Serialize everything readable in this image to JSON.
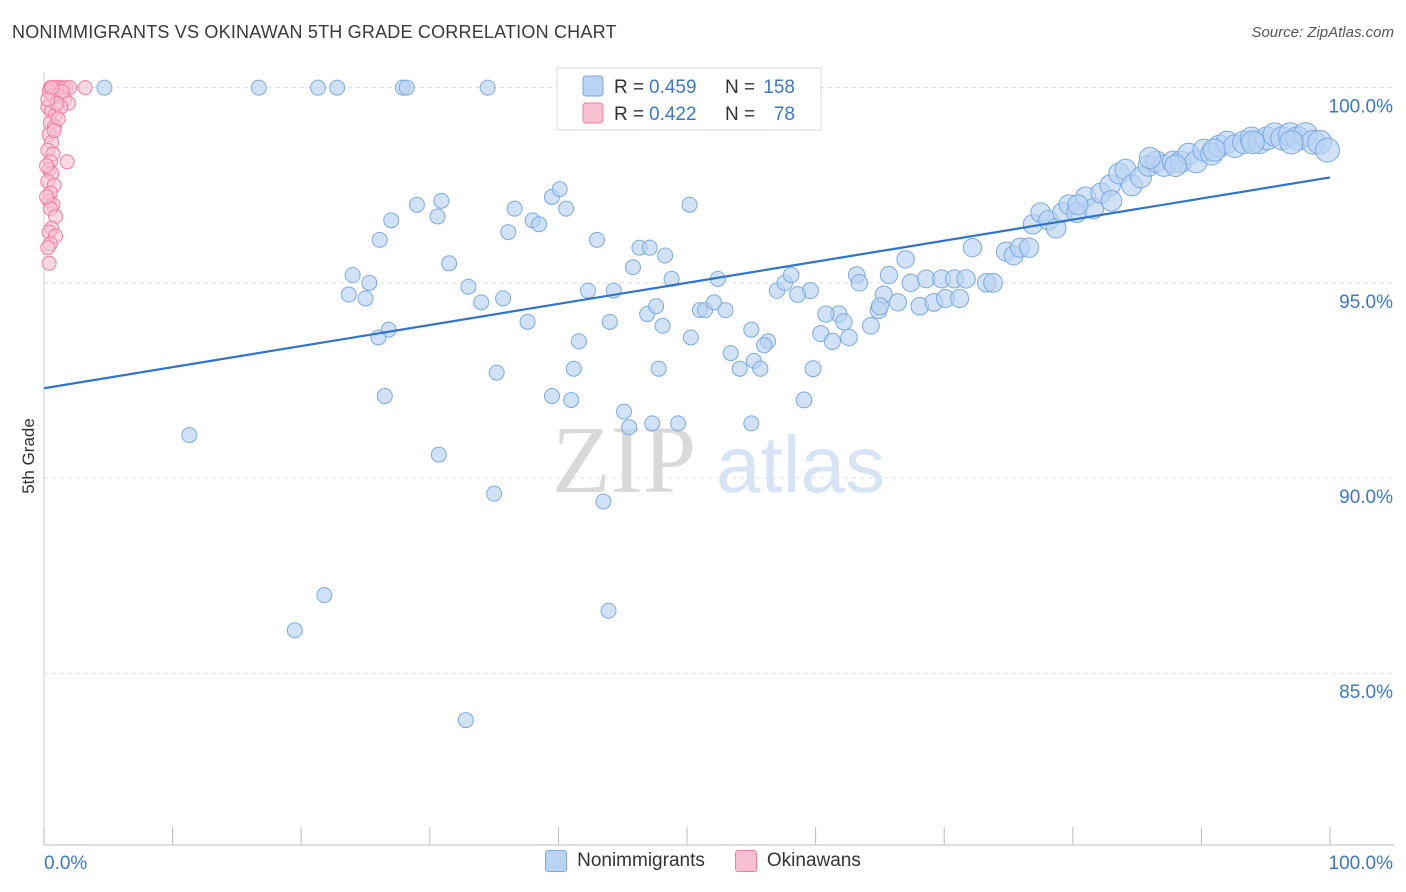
{
  "title": "NONIMMIGRANTS VS OKINAWAN 5TH GRADE CORRELATION CHART",
  "source": "Source: ZipAtlas.com",
  "watermark": {
    "zip": "ZIP",
    "atlas": "atlas"
  },
  "colors": {
    "blue_fill": "#b9d3f3",
    "blue_stroke": "#7aaae0",
    "blue_line": "#2f74cc",
    "pink_fill": "#f8bfd0",
    "pink_stroke": "#ee7fa0",
    "value_text": "#3b78c9"
  },
  "legend_top": [
    {
      "r_label": "R =",
      "r_value": "0.459",
      "n_label": "N =",
      "n_value": "158"
    },
    {
      "r_label": "R =",
      "r_value": "0.422",
      "n_label": "N =",
      "n_value": "78"
    }
  ],
  "legend_bottom": [
    {
      "name": "Nonimmigrants"
    },
    {
      "name": "Okinawans"
    }
  ],
  "chart_data": {
    "type": "scatter",
    "ylabel": "5th Grade",
    "xlabel": "",
    "x_tick_labels": [
      "0.0%",
      "100.0%"
    ],
    "y_tick_labels": [
      "100.0%",
      "95.0%",
      "90.0%",
      "85.0%"
    ],
    "y_ticks": [
      100,
      95,
      90,
      85
    ],
    "xlim": [
      0,
      100
    ],
    "ylim": [
      80.6,
      100.4
    ],
    "grid": "horizontal-dashed",
    "legend_placement": "top-center",
    "series": [
      {
        "name": "Nonimmigrants",
        "trend": [
          [
            0,
            92.3
          ],
          [
            100,
            97.7
          ]
        ],
        "points": [
          [
            4.7,
            100
          ],
          [
            16.7,
            100
          ],
          [
            21.3,
            100
          ],
          [
            22.8,
            100
          ],
          [
            27.9,
            100
          ],
          [
            28.2,
            100
          ],
          [
            34.5,
            100
          ],
          [
            11.3,
            91.1
          ],
          [
            19.5,
            86.1
          ],
          [
            21.8,
            87.0
          ],
          [
            26.5,
            92.1
          ],
          [
            30.7,
            90.6
          ],
          [
            32.8,
            83.8
          ],
          [
            35.0,
            89.6
          ],
          [
            43.5,
            89.4
          ],
          [
            43.9,
            86.6
          ],
          [
            47.3,
            91.4
          ],
          [
            49.3,
            91.4
          ],
          [
            55.0,
            91.4
          ],
          [
            29.0,
            97.0
          ],
          [
            30.9,
            97.1
          ],
          [
            30.6,
            96.7
          ],
          [
            27.0,
            96.6
          ],
          [
            26.1,
            96.1
          ],
          [
            31.5,
            95.5
          ],
          [
            24.0,
            95.2
          ],
          [
            25.3,
            95.0
          ],
          [
            23.7,
            94.7
          ],
          [
            25.0,
            94.6
          ],
          [
            26.8,
            93.8
          ],
          [
            26.0,
            93.6
          ],
          [
            33.0,
            94.9
          ],
          [
            34.0,
            94.5
          ],
          [
            35.7,
            94.6
          ],
          [
            35.2,
            92.7
          ],
          [
            37.6,
            94.0
          ],
          [
            36.6,
            96.9
          ],
          [
            36.1,
            96.3
          ],
          [
            38.0,
            96.6
          ],
          [
            38.5,
            96.5
          ],
          [
            39.5,
            97.2
          ],
          [
            40.1,
            97.4
          ],
          [
            40.6,
            96.9
          ],
          [
            39.5,
            92.1
          ],
          [
            41.0,
            92.0
          ],
          [
            41.2,
            92.8
          ],
          [
            41.6,
            93.5
          ],
          [
            42.3,
            94.8
          ],
          [
            43.0,
            96.1
          ],
          [
            44.3,
            94.8
          ],
          [
            45.1,
            91.7
          ],
          [
            45.5,
            91.3
          ],
          [
            45.8,
            95.4
          ],
          [
            46.3,
            95.9
          ],
          [
            47.1,
            95.9
          ],
          [
            46.9,
            94.2
          ],
          [
            47.6,
            94.4
          ],
          [
            48.3,
            95.7
          ],
          [
            48.8,
            95.1
          ],
          [
            48.1,
            93.9
          ],
          [
            50.2,
            97.0
          ],
          [
            50.3,
            93.6
          ],
          [
            51.0,
            94.3
          ],
          [
            51.4,
            94.3
          ],
          [
            52.1,
            94.5
          ],
          [
            52.4,
            95.1
          ],
          [
            53.4,
            93.2
          ],
          [
            54.1,
            92.8
          ],
          [
            55.2,
            93.0
          ],
          [
            55.7,
            92.8
          ],
          [
            55.0,
            93.8
          ],
          [
            56.3,
            93.5
          ],
          [
            57.0,
            94.8
          ],
          [
            57.6,
            95.0
          ],
          [
            58.1,
            95.2
          ],
          [
            59.1,
            92.0
          ],
          [
            59.6,
            94.8
          ],
          [
            59.8,
            92.8
          ],
          [
            60.4,
            93.7
          ],
          [
            61.3,
            93.5
          ],
          [
            61.8,
            94.2
          ],
          [
            62.2,
            94.0
          ],
          [
            62.6,
            93.6
          ],
          [
            63.2,
            95.2
          ],
          [
            63.4,
            95.0
          ],
          [
            64.3,
            93.9
          ],
          [
            64.9,
            94.3
          ],
          [
            65.3,
            94.7
          ],
          [
            65.7,
            95.2
          ],
          [
            66.4,
            94.5
          ],
          [
            67.0,
            95.6
          ],
          [
            67.4,
            95.0
          ],
          [
            68.1,
            94.4
          ],
          [
            68.6,
            95.1
          ],
          [
            69.2,
            94.5
          ],
          [
            69.8,
            95.1
          ],
          [
            70.1,
            94.6
          ],
          [
            70.8,
            95.1
          ],
          [
            71.2,
            94.6
          ],
          [
            71.7,
            95.1
          ],
          [
            72.2,
            95.9
          ],
          [
            73.3,
            95.0
          ],
          [
            73.8,
            95.0
          ],
          [
            74.8,
            95.8
          ],
          [
            75.4,
            95.7
          ],
          [
            75.9,
            95.9
          ],
          [
            76.6,
            95.9
          ],
          [
            76.9,
            96.5
          ],
          [
            77.5,
            96.8
          ],
          [
            78.1,
            96.6
          ],
          [
            78.7,
            96.4
          ],
          [
            79.2,
            96.8
          ],
          [
            79.7,
            97.0
          ],
          [
            80.3,
            96.8
          ],
          [
            81.0,
            97.2
          ],
          [
            81.6,
            96.9
          ],
          [
            82.2,
            97.3
          ],
          [
            82.9,
            97.5
          ],
          [
            83.6,
            97.8
          ],
          [
            84.1,
            97.9
          ],
          [
            84.6,
            97.5
          ],
          [
            85.3,
            97.7
          ],
          [
            85.9,
            98.0
          ],
          [
            86.5,
            98.1
          ],
          [
            87.1,
            98.0
          ],
          [
            87.8,
            98.1
          ],
          [
            88.4,
            98.1
          ],
          [
            89.0,
            98.3
          ],
          [
            89.6,
            98.1
          ],
          [
            90.2,
            98.4
          ],
          [
            90.8,
            98.3
          ],
          [
            91.4,
            98.5
          ],
          [
            92.0,
            98.6
          ],
          [
            92.6,
            98.5
          ],
          [
            93.3,
            98.6
          ],
          [
            93.9,
            98.7
          ],
          [
            94.5,
            98.6
          ],
          [
            95.1,
            98.7
          ],
          [
            95.7,
            98.8
          ],
          [
            96.3,
            98.7
          ],
          [
            96.9,
            98.8
          ],
          [
            97.5,
            98.7
          ],
          [
            98.1,
            98.8
          ],
          [
            98.7,
            98.6
          ],
          [
            99.2,
            98.6
          ],
          [
            99.8,
            98.4
          ],
          [
            80.4,
            97.0
          ],
          [
            83.0,
            97.1
          ],
          [
            86.0,
            98.2
          ],
          [
            88.0,
            98.0
          ],
          [
            91.0,
            98.4
          ],
          [
            94.0,
            98.6
          ],
          [
            97.0,
            98.6
          ],
          [
            65.0,
            94.4
          ],
          [
            58.6,
            94.7
          ],
          [
            47.8,
            92.8
          ],
          [
            53.0,
            94.3
          ],
          [
            56.0,
            93.4
          ],
          [
            44.0,
            94.0
          ],
          [
            60.8,
            94.2
          ]
        ]
      },
      {
        "name": "Okinawans",
        "points": [
          [
            0.5,
            100
          ],
          [
            0.8,
            100
          ],
          [
            1.0,
            100
          ],
          [
            1.2,
            100
          ],
          [
            1.5,
            100
          ],
          [
            1.7,
            100
          ],
          [
            2.0,
            100
          ],
          [
            3.2,
            100
          ],
          [
            0.4,
            99.9
          ],
          [
            0.7,
            99.8
          ],
          [
            1.1,
            99.8
          ],
          [
            1.6,
            99.7
          ],
          [
            1.9,
            99.6
          ],
          [
            0.3,
            99.5
          ],
          [
            0.6,
            99.4
          ],
          [
            0.9,
            99.3
          ],
          [
            1.3,
            99.5
          ],
          [
            0.5,
            99.1
          ],
          [
            0.8,
            99.0
          ],
          [
            0.4,
            98.8
          ],
          [
            0.6,
            98.6
          ],
          [
            0.3,
            98.4
          ],
          [
            0.7,
            98.3
          ],
          [
            0.5,
            98.1
          ],
          [
            1.8,
            98.1
          ],
          [
            0.4,
            97.9
          ],
          [
            0.6,
            97.8
          ],
          [
            0.3,
            97.6
          ],
          [
            0.8,
            97.5
          ],
          [
            0.5,
            97.3
          ],
          [
            0.4,
            97.1
          ],
          [
            0.7,
            97.0
          ],
          [
            0.5,
            96.9
          ],
          [
            0.9,
            96.7
          ],
          [
            0.6,
            96.4
          ],
          [
            0.4,
            96.3
          ],
          [
            0.9,
            96.2
          ],
          [
            0.5,
            96.0
          ],
          [
            0.3,
            95.9
          ],
          [
            0.4,
            95.5
          ],
          [
            1.1,
            99.2
          ],
          [
            0.2,
            98.0
          ],
          [
            0.2,
            97.2
          ],
          [
            1.4,
            99.9
          ],
          [
            0.6,
            100
          ],
          [
            1.0,
            99.6
          ],
          [
            0.3,
            99.7
          ],
          [
            0.8,
            98.9
          ]
        ]
      }
    ]
  }
}
